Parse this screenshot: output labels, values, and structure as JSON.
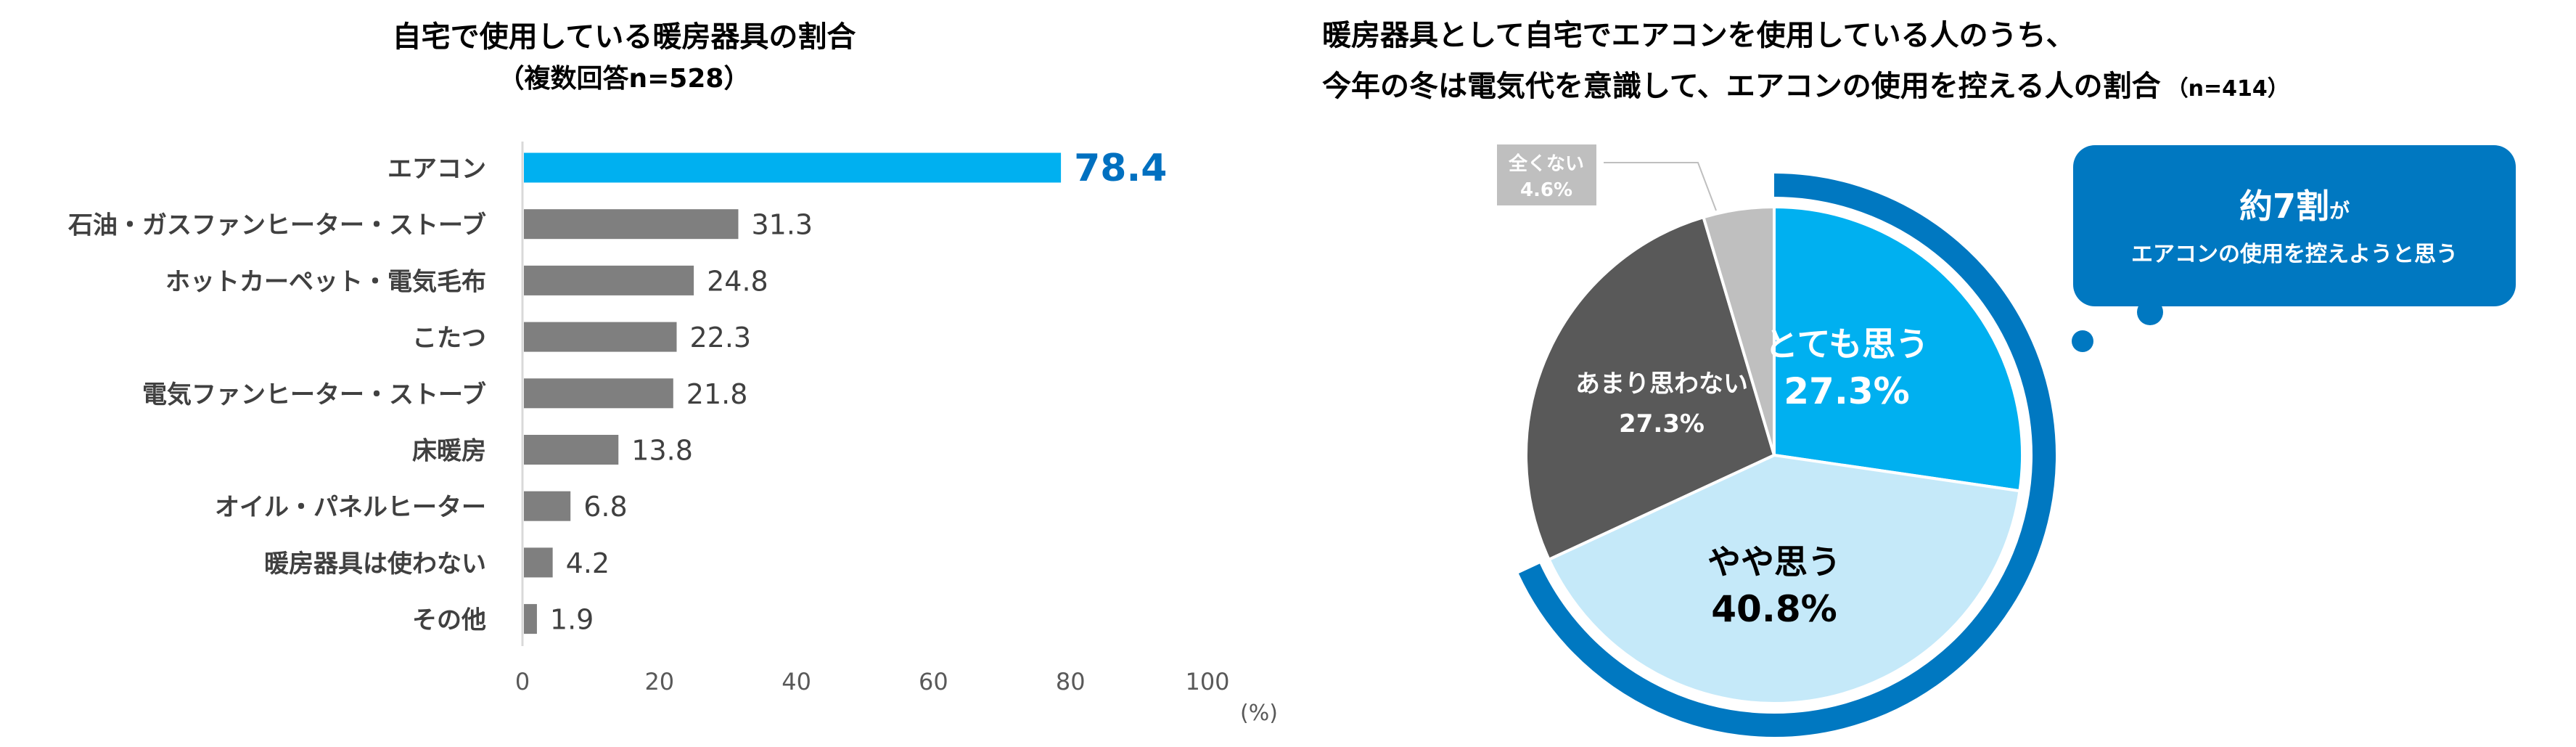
{
  "chart_data": [
    {
      "type": "bar",
      "orientation": "horizontal",
      "title": "自宅で使用している暖房器具の割合",
      "subtitle": "（複数回答n=528）",
      "categories": [
        "エアコン",
        "石油・ガスファンヒーター・ストーブ",
        "ホットカーペット・電気毛布",
        "こたつ",
        "電気ファンヒーター・ストーブ",
        "床暖房",
        "オイル・パネルヒーター",
        "暖房器具は使わない",
        "その他"
      ],
      "values": [
        78.4,
        31.3,
        24.8,
        22.3,
        21.8,
        13.8,
        6.8,
        4.2,
        1.9
      ],
      "value_labels": [
        "78.4",
        "31.3",
        "24.8",
        "22.3",
        "21.8",
        "13.8",
        "6.8",
        "4.2",
        "1.9"
      ],
      "xlim": [
        0,
        100
      ],
      "xticks": [
        "0",
        "20",
        "40",
        "60",
        "80",
        "100"
      ],
      "xlabel": "(%)",
      "highlight_color": "#00B0F0",
      "highlight_label_color": "#0070C0",
      "bar_color": "#7F7F7F",
      "grid": false
    },
    {
      "type": "pie",
      "title_lines": [
        "暖房器具として自宅でエアコンを使用している人のうち、",
        "今年の冬は電気代を意識して、エアコンの使用を控える人の割合"
      ],
      "n_label": "（n=414）",
      "slices": [
        {
          "label": "とても思う",
          "value": 27.3,
          "value_label": "27.3%",
          "color": "#00B0F0",
          "text_color": "#FFFFFF"
        },
        {
          "label": "やや思う",
          "value": 40.8,
          "value_label": "40.8%",
          "color": "#C5E9F9",
          "text_color": "#000000"
        },
        {
          "label": "あまり思わない",
          "value": 27.3,
          "value_label": "27.3%",
          "color": "#595959",
          "text_color": "#FFFFFF"
        },
        {
          "label": "全くない",
          "value": 4.6,
          "value_label": "4.6%",
          "color": "#BFBFBF",
          "text_color": "#FFFFFF"
        }
      ],
      "highlight_ring_color": "#0078C1",
      "callout": {
        "main": "約7割",
        "particle": "が",
        "sub": "エアコンの使用を控えようと思う",
        "color": "#0078C1"
      }
    }
  ]
}
